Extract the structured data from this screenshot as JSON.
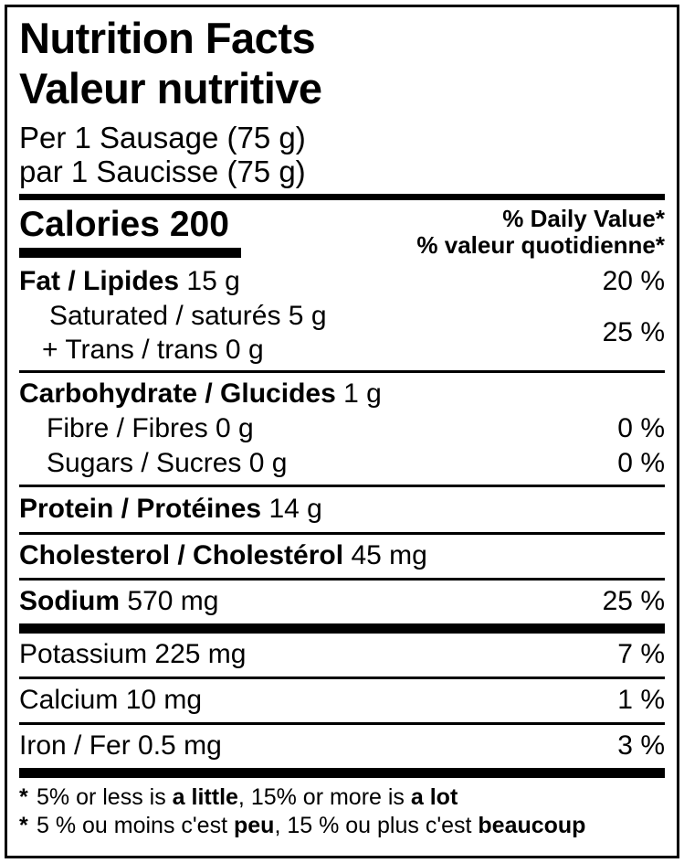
{
  "header": {
    "title_en": "Nutrition Facts",
    "title_fr": "Valeur nutritive",
    "serving_en": "Per 1 Sausage (75 g)",
    "serving_fr": "par 1 Saucisse (75 g)"
  },
  "calories": {
    "label": "Calories",
    "value": "200"
  },
  "daily_value_header": {
    "en": "% Daily Value*",
    "fr": "% valeur quotidienne*"
  },
  "nutrients": {
    "fat": {
      "name": "Fat / Lipides",
      "amount": "15 g",
      "dv": "20 %"
    },
    "saturated": {
      "name": "Saturated / saturés 5 g"
    },
    "trans": {
      "name": "+ Trans / trans 0 g"
    },
    "saturated_trans_dv": "25 %",
    "carbohydrate": {
      "name": "Carbohydrate / Glucides",
      "amount": "1 g"
    },
    "fibre": {
      "name": "Fibre / Fibres 0 g",
      "dv": "0 %"
    },
    "sugars": {
      "name": "Sugars / Sucres 0 g",
      "dv": "0 %"
    },
    "protein": {
      "name": "Protein / Protéines",
      "amount": "14 g"
    },
    "cholesterol": {
      "name": "Cholesterol / Cholestérol",
      "amount": "45 mg"
    },
    "sodium": {
      "name": "Sodium",
      "amount": "570 mg",
      "dv": "25 %"
    },
    "potassium": {
      "name": "Potassium 225 mg",
      "dv": "7 %"
    },
    "calcium": {
      "name": "Calcium 10 mg",
      "dv": "1 %"
    },
    "iron": {
      "name": "Iron / Fer 0.5 mg",
      "dv": "3 %"
    }
  },
  "footnotes": {
    "en": {
      "star": "*",
      "part1": "5% or less is ",
      "bold1": "a little",
      "part2": ", 15% or more is ",
      "bold2": "a lot"
    },
    "fr": {
      "star": "*",
      "part1": "5 % ou moins c'est ",
      "bold1": "peu",
      "part2": ", 15 % ou plus c'est ",
      "bold2": "beaucoup"
    }
  },
  "colors": {
    "text": "#000000",
    "background": "#ffffff",
    "border": "#000000"
  }
}
